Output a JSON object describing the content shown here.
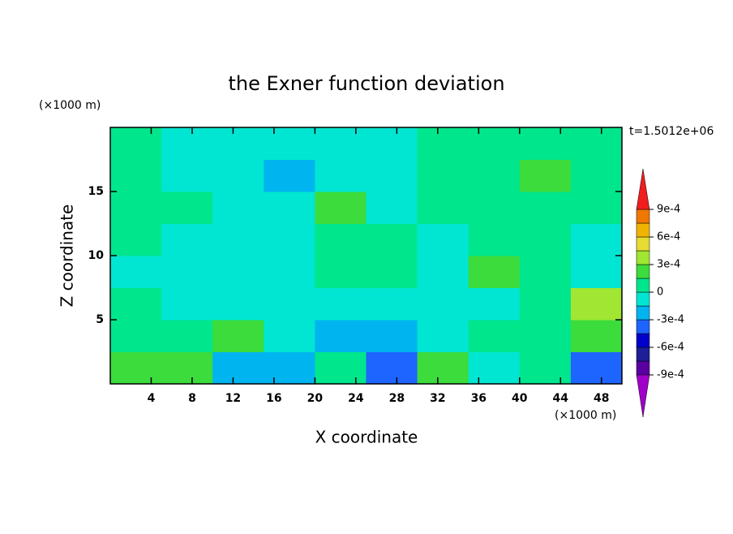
{
  "chart_data": {
    "type": "contour",
    "title": "the Exner function deviation",
    "x_label": "X coordinate",
    "y_label": "Z coordinate",
    "x_unit": "(×1000 m)",
    "y_unit": "(×1000 m)",
    "annotation": "t=1.5012e+06",
    "xlim": [
      0,
      50
    ],
    "ylim": [
      0,
      20
    ],
    "xticks": [
      4,
      8,
      12,
      16,
      20,
      24,
      28,
      32,
      36,
      40,
      44,
      48
    ],
    "yticks": [
      5,
      10,
      15
    ],
    "x": [
      2.5,
      7.5,
      12.5,
      17.5,
      22.5,
      27.5,
      32.5,
      37.5,
      42.5,
      47.5
    ],
    "z": [
      1.25,
      3.75,
      6.25,
      8.75,
      11.25,
      13.75,
      16.25,
      18.75
    ],
    "values": [
      [
        0.0002,
        0.0002,
        -0.0002,
        -0.0002,
        8e-05,
        -0.0004,
        0.0002,
        -5e-05,
        8e-05,
        -0.0004
      ],
      [
        8e-05,
        8e-05,
        0.0002,
        -5e-05,
        -0.0002,
        -0.0002,
        -5e-05,
        8e-05,
        8e-05,
        0.0002
      ],
      [
        8e-05,
        -5e-05,
        -5e-05,
        -5e-05,
        -5e-05,
        -5e-05,
        -5e-05,
        -5e-05,
        8e-05,
        0.00035
      ],
      [
        -5e-05,
        -5e-05,
        -5e-05,
        -5e-05,
        8e-05,
        8e-05,
        -5e-05,
        0.0002,
        8e-05,
        -5e-05
      ],
      [
        8e-05,
        -5e-05,
        -5e-05,
        -5e-05,
        8e-05,
        8e-05,
        -5e-05,
        8e-05,
        8e-05,
        -5e-05
      ],
      [
        8e-05,
        8e-05,
        -5e-05,
        -5e-05,
        0.0002,
        -5e-05,
        8e-05,
        8e-05,
        8e-05,
        8e-05
      ],
      [
        8e-05,
        -5e-05,
        -5e-05,
        -0.0002,
        -5e-05,
        -5e-05,
        8e-05,
        8e-05,
        0.0002,
        8e-05
      ],
      [
        8e-05,
        -5e-05,
        -5e-05,
        -5e-05,
        -5e-05,
        -5e-05,
        8e-05,
        8e-05,
        8e-05,
        8e-05
      ]
    ],
    "levels": [
      {
        "value": -0.0009,
        "label": "-9e-4"
      },
      -0.00075,
      {
        "value": -0.0006,
        "label": "-6e-4"
      },
      -0.00045,
      {
        "value": -0.0003,
        "label": "-3e-4"
      },
      -0.00015,
      0,
      0.00015,
      {
        "value": 0.0003,
        "label": "3e-4"
      },
      0.00045,
      {
        "value": 0.0006,
        "label": "6e-4"
      },
      0.00075,
      {
        "value": 0.0009,
        "label": "9e-4"
      }
    ],
    "colors": [
      "#a000c8",
      "#5a00a0",
      "#1e1e96",
      "#0000c8",
      "#1e64ff",
      "#00b4f0",
      "#00e6d2",
      "#00e68c",
      "#3cdc3c",
      "#a0e632",
      "#e6dc32",
      "#f0b400",
      "#f07800",
      "#f01e1e",
      "#f0a0a0"
    ]
  }
}
